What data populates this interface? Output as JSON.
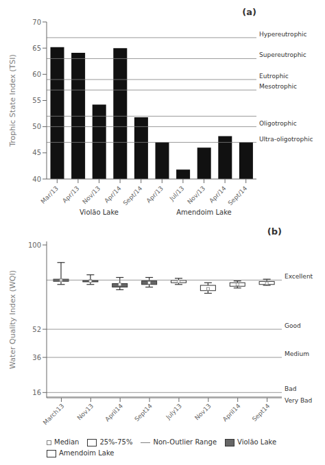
{
  "chart_data": [
    {
      "type": "bar",
      "title": "(a)",
      "y_label": "Trophic State Index (TSI)",
      "ylim": [
        40,
        70
      ],
      "yticks": [
        40,
        45,
        50,
        55,
        60,
        65,
        70
      ],
      "color": "#111111",
      "grid": false,
      "groups": [
        {
          "label": "Violão Lake",
          "categories": [
            "Mar/13",
            "Apr/13",
            "Nov/13",
            "Apr/14",
            "Sept/14"
          ],
          "values": [
            65.2,
            64.1,
            54.2,
            65.0,
            51.8
          ]
        },
        {
          "label": "Amendoim Lake",
          "categories": [
            "Apr/13",
            "Jul/13",
            "Nov/13",
            "Apr/14",
            "Sept/14"
          ],
          "values": [
            47.0,
            41.8,
            46.0,
            48.2,
            47.0
          ]
        }
      ],
      "reference_lines": [
        {
          "y": 67,
          "label": "Hypereutrophic"
        },
        {
          "y": 63,
          "label": "Supereutrophic"
        },
        {
          "y": 59,
          "label": "Eutrophic"
        },
        {
          "y": 57,
          "label": "Mesotrophic"
        },
        {
          "y": 52
        },
        {
          "y": 50,
          "label": "Oligotrophic"
        },
        {
          "y": 47,
          "label": "Ultra-oligotrophic"
        }
      ]
    },
    {
      "type": "box",
      "title": "(b)",
      "y_label": "Water Quality Index (WQI)",
      "ylim": [
        13,
        102
      ],
      "yticks": [
        16,
        36,
        52,
        100
      ],
      "grid": false,
      "legend": "bottom",
      "legend_items": [
        "Median",
        "25%-75%",
        "Non-Outlier Range"
      ],
      "series": [
        {
          "name": "Violão Lake",
          "color": "#666666",
          "categories": [
            "March13",
            "Nov13",
            "April14",
            "Sept14"
          ],
          "values": [
            {
              "median": 80.0,
              "q1": 79.3,
              "q3": 80.5,
              "whislo": 77.5,
              "whishi": 90.0
            },
            {
              "median": 79.5,
              "q1": 79.0,
              "q3": 79.8,
              "whislo": 77.5,
              "whishi": 83.0
            },
            {
              "median": 77.5,
              "q1": 76.0,
              "q3": 78.0,
              "whislo": 74.5,
              "whishi": 81.5
            },
            {
              "median": 78.5,
              "q1": 77.5,
              "q3": 79.5,
              "whislo": 76.0,
              "whishi": 81.5
            }
          ]
        },
        {
          "name": "Amendoim Lake",
          "color": "#ffffff",
          "categories": [
            "July13",
            "Nov13",
            "April14",
            "Sept14"
          ],
          "values": [
            {
              "median": 79.2,
              "q1": 78.5,
              "q3": 79.8,
              "whislo": 77.5,
              "whishi": 81.0
            },
            {
              "median": 75.0,
              "q1": 74.0,
              "q3": 77.0,
              "whislo": 72.5,
              "whishi": 78.5
            },
            {
              "median": 77.5,
              "q1": 76.5,
              "q3": 78.5,
              "whislo": 75.5,
              "whishi": 79.5
            },
            {
              "median": 78.2,
              "q1": 77.5,
              "q3": 79.2,
              "whislo": 77.0,
              "whishi": 80.5
            }
          ]
        }
      ],
      "reference_lines": [
        {
          "y": 80,
          "label": "Excellent"
        },
        {
          "y": 52,
          "label": "Good"
        },
        {
          "y": 36,
          "label": "Medium"
        },
        {
          "y": 16,
          "label": "Bad"
        },
        {
          "y": 13.5,
          "label": "Very Bad"
        }
      ]
    }
  ]
}
